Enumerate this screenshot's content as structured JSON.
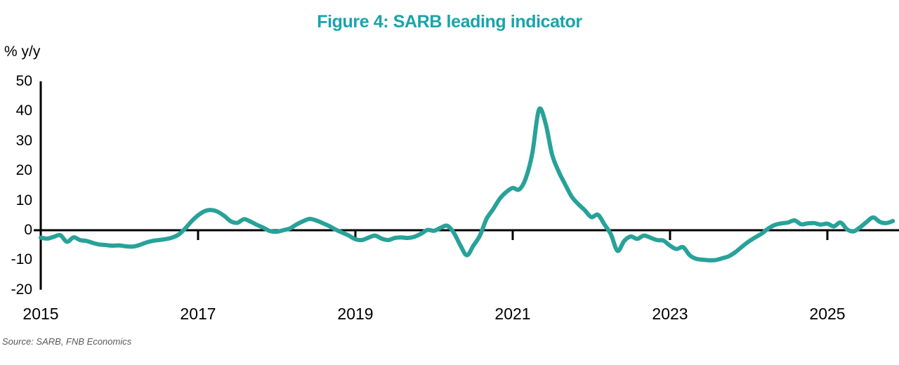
{
  "title": "Figure 4: SARB leading indicator",
  "y_axis_unit_label": "% y/y",
  "source_note": "Source: SARB, FNB Economics",
  "colors": {
    "title": "#18A4AC",
    "line": "#28A299",
    "axis": "#000000",
    "tick_text": "#000000",
    "source_text": "#595959",
    "background": "#ffffff"
  },
  "chart_data": {
    "type": "line",
    "title": "Figure 4: SARB leading indicator",
    "ylabel": "% y/y",
    "xlabel": "",
    "x_start": "2015-01",
    "frequency": "monthly",
    "series": [
      {
        "name": "SARB leading indicator, % y/y",
        "values": [
          -2.5,
          -2.8,
          -2.2,
          -1.7,
          -3.9,
          -2.4,
          -3.3,
          -3.6,
          -4.3,
          -4.8,
          -5.0,
          -5.2,
          -5.1,
          -5.4,
          -5.5,
          -5.0,
          -4.2,
          -3.6,
          -3.3,
          -3.0,
          -2.5,
          -1.5,
          0.5,
          3.0,
          5.0,
          6.4,
          6.8,
          6.2,
          4.8,
          3.0,
          2.5,
          3.7,
          2.9,
          1.8,
          0.8,
          -0.3,
          -0.5,
          0.0,
          0.6,
          1.9,
          3.0,
          3.8,
          3.3,
          2.4,
          1.4,
          0.2,
          -0.8,
          -1.8,
          -3.0,
          -3.3,
          -2.5,
          -1.8,
          -2.8,
          -3.3,
          -2.6,
          -2.4,
          -2.6,
          -2.2,
          -1.2,
          0.1,
          -0.2,
          0.8,
          1.5,
          -0.8,
          -5.0,
          -8.4,
          -5.2,
          -1.8,
          3.8,
          7.0,
          10.5,
          12.8,
          14.2,
          13.7,
          17.5,
          26.0,
          40.5,
          36.0,
          25.5,
          19.8,
          15.4,
          11.3,
          8.8,
          6.7,
          4.4,
          5.2,
          1.9,
          -1.5,
          -6.9,
          -3.6,
          -2.1,
          -2.9,
          -1.8,
          -2.5,
          -3.3,
          -3.5,
          -5.2,
          -6.3,
          -5.7,
          -8.4,
          -9.6,
          -9.9,
          -10.1,
          -10.0,
          -9.4,
          -8.7,
          -7.3,
          -5.5,
          -3.8,
          -2.4,
          -1.1,
          0.6,
          1.8,
          2.3,
          2.6,
          3.3,
          2.0,
          2.3,
          2.4,
          1.9,
          2.2,
          1.3,
          2.6,
          0.3,
          -0.4,
          1.0,
          2.8,
          4.3,
          2.8,
          2.4,
          3.1
        ]
      }
    ],
    "x_tick_labels": [
      "2015",
      "2017",
      "2019",
      "2021",
      "2023",
      "2025"
    ],
    "x_tick_years": [
      2015,
      2017,
      2019,
      2021,
      2023,
      2025
    ],
    "y_ticks": [
      50,
      40,
      30,
      20,
      10,
      0,
      -10,
      -20
    ],
    "ylim": [
      -20,
      50
    ],
    "xlim_years": [
      2015.0,
      2025.92
    ],
    "grid": false,
    "legend": "none"
  }
}
